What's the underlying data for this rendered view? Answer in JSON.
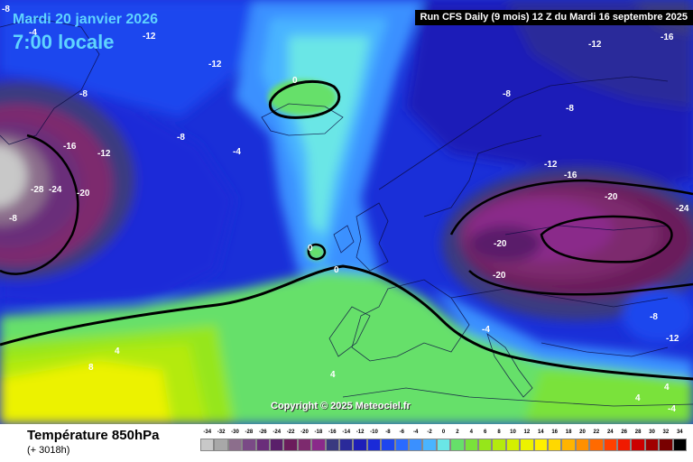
{
  "header": {
    "date_line": "Mardi 20 janvier 2026",
    "time_line": "7:00 locale",
    "run_info": "Run CFS Daily (9 mois) 12 Z du Mardi 16 septembre 2025"
  },
  "footer": {
    "product_title": "Température 850hPa",
    "forecast_hours": "(+ 3018h)",
    "copyright": "Copyright © 2025 Meteociel.fr"
  },
  "legend": {
    "values": [
      "-34",
      "-32",
      "-30",
      "-28",
      "-26",
      "-24",
      "-22",
      "-20",
      "-18",
      "-16",
      "-14",
      "-12",
      "-10",
      "-8",
      "-6",
      "-4",
      "-2",
      "0",
      "2",
      "4",
      "6",
      "8",
      "10",
      "12",
      "14",
      "16",
      "18",
      "20",
      "22",
      "24",
      "26",
      "28",
      "30",
      "32",
      "34"
    ],
    "colors": [
      "#c8c8c8",
      "#a8a8a8",
      "#8c6e8c",
      "#7a4a86",
      "#6a2d7a",
      "#5a1f6a",
      "#6b1c5c",
      "#7d2a6e",
      "#8a2a8a",
      "#3a3a80",
      "#2a2a9a",
      "#1e1eb8",
      "#1a2ad8",
      "#1e46ee",
      "#2a6aff",
      "#3a90ff",
      "#4ab4ff",
      "#6ae6e6",
      "#66e06a",
      "#7ae23a",
      "#96e61a",
      "#b4ea0e",
      "#d4f000",
      "#ecf200",
      "#fff000",
      "#ffd800",
      "#ffb400",
      "#ff9000",
      "#ff6a00",
      "#ff4000",
      "#f01a00",
      "#cc0000",
      "#a00000",
      "#780000",
      "#000000"
    ]
  },
  "contour_labels": [
    "-8",
    "-4",
    "-12",
    "-12",
    "-8",
    "0",
    "-8",
    "-16",
    "-12",
    "-4",
    "-28",
    "-24",
    "-20",
    "-8",
    "0",
    "0",
    "4",
    "8",
    "4",
    "-12",
    "-16",
    "-8",
    "-8",
    "-12",
    "-16",
    "-20",
    "-24",
    "-20",
    "-20",
    "-4",
    "-8",
    "-12",
    "4",
    "4",
    "-4"
  ]
}
